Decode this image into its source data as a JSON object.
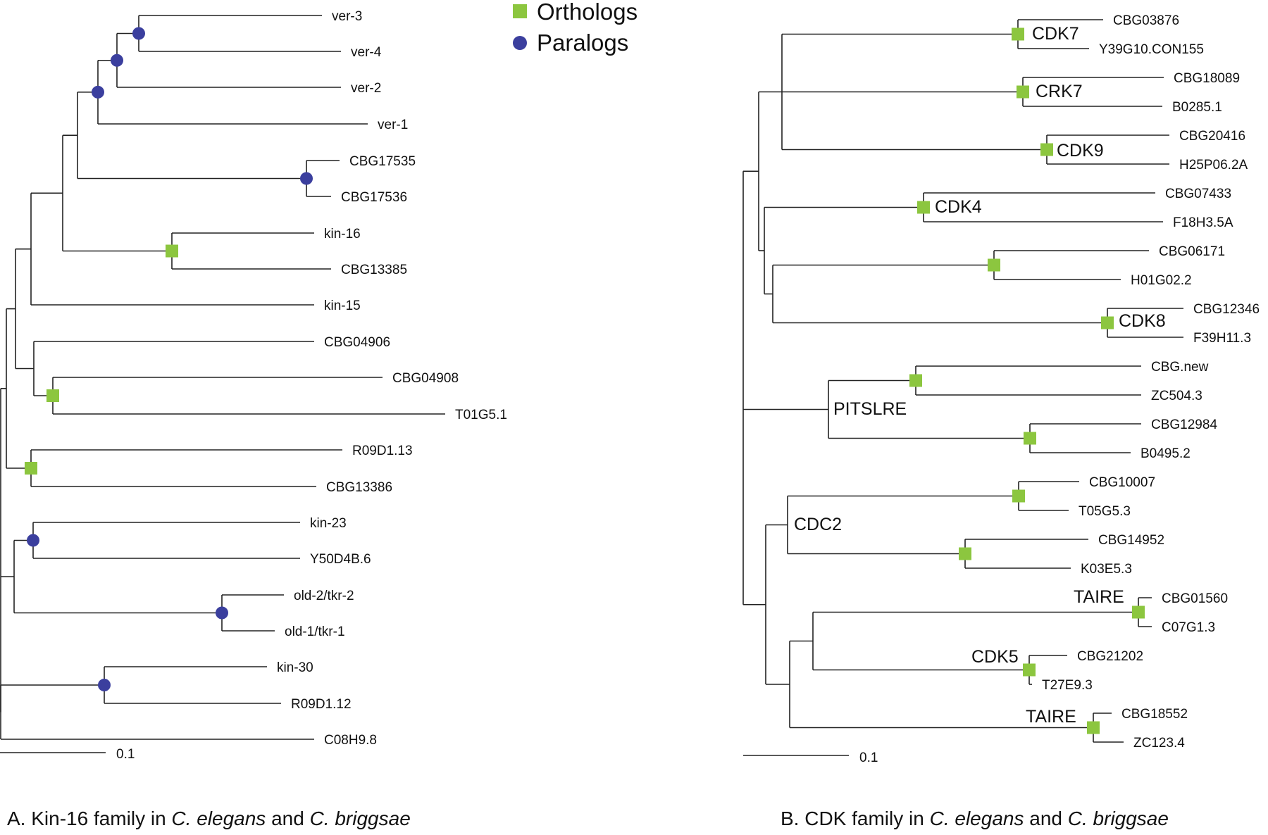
{
  "legend": {
    "orthologs": {
      "label": "Orthologs",
      "color": "#8cc63f"
    },
    "paralogs": {
      "label": "Paralogs",
      "color": "#3b3f9e"
    }
  },
  "panel_a": {
    "caption": {
      "prefix": "A. Kin-16 family in ",
      "species1": "C. elegans",
      "and": " and ",
      "species2": "C. briggsae"
    },
    "scale_label": "0.1",
    "leaves": [
      "ver-3",
      "ver-4",
      "ver-2",
      "ver-1",
      "CBG17535",
      "CBG17536",
      "kin-16",
      "CBG13385",
      "kin-15",
      "CBG04906",
      "CBG04908",
      "T01G5.1",
      "R09D1.13",
      "CBG13386",
      "kin-23",
      "Y50D4B.6",
      "old-2/tkr-2",
      "old-1/tkr-1",
      "kin-30",
      "R09D1.12",
      "C08H9.8"
    ]
  },
  "panel_b": {
    "caption": {
      "prefix": "B. CDK family in ",
      "species1": "C. elegans",
      "and": " and ",
      "species2": "C. briggsae"
    },
    "scale_label": "0.1",
    "leaves": [
      "CBG03876",
      "Y39G10.CON155",
      "CBG18089",
      "B0285.1",
      "CBG20416",
      "H25P06.2A",
      "CBG07433",
      "F18H3.5A",
      "CBG06171",
      "H01G02.2",
      "CBG12346",
      "F39H11.3",
      "CBG.new",
      "ZC504.3",
      "CBG12984",
      "B0495.2",
      "CBG10007",
      "T05G5.3",
      "CBG14952",
      "K03E5.3",
      "CBG01560",
      "C07G1.3",
      "CBG21202",
      "T27E9.3",
      "CBG18552",
      "ZC123.4"
    ],
    "clade_labels": {
      "cdk7": "CDK7",
      "crk7": "CRK7",
      "cdk9": "CDK9",
      "cdk4": "CDK4",
      "cdk8": "CDK8",
      "pitslre": "PITSLRE",
      "cdc2": "CDC2",
      "taire1": "TAIRE",
      "cdk5": "CDK5",
      "taire2": "TAIRE"
    }
  }
}
